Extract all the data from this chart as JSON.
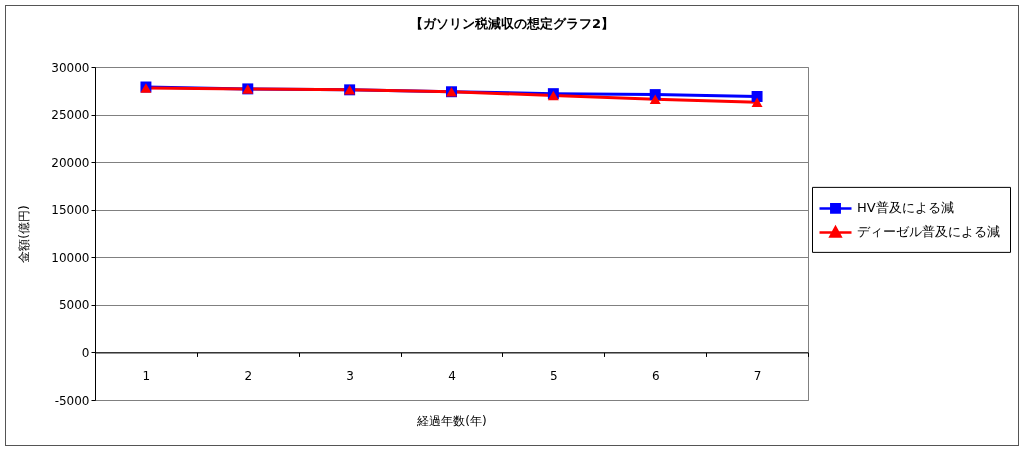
{
  "chart_data": {
    "type": "line",
    "title": "【ガソリン税減収の想定グラフ2】",
    "xlabel": "経過年数(年)",
    "ylabel": "金額(億円)",
    "categories": [
      "1",
      "2",
      "3",
      "4",
      "5",
      "6",
      "7"
    ],
    "series": [
      {
        "name": "HV普及による減",
        "color": "#0000ff",
        "marker": "square",
        "values": [
          27900,
          27700,
          27600,
          27400,
          27200,
          27100,
          26900
        ]
      },
      {
        "name": "ディーゼル普及による減",
        "color": "#ff0000",
        "marker": "triangle",
        "values": [
          27800,
          27700,
          27600,
          27400,
          27000,
          26600,
          26300
        ]
      }
    ],
    "ylim": [
      -5000,
      30000
    ],
    "yticks": [
      -5000,
      0,
      5000,
      10000,
      15000,
      20000,
      25000,
      30000
    ],
    "grid": "y",
    "legend": "right"
  }
}
